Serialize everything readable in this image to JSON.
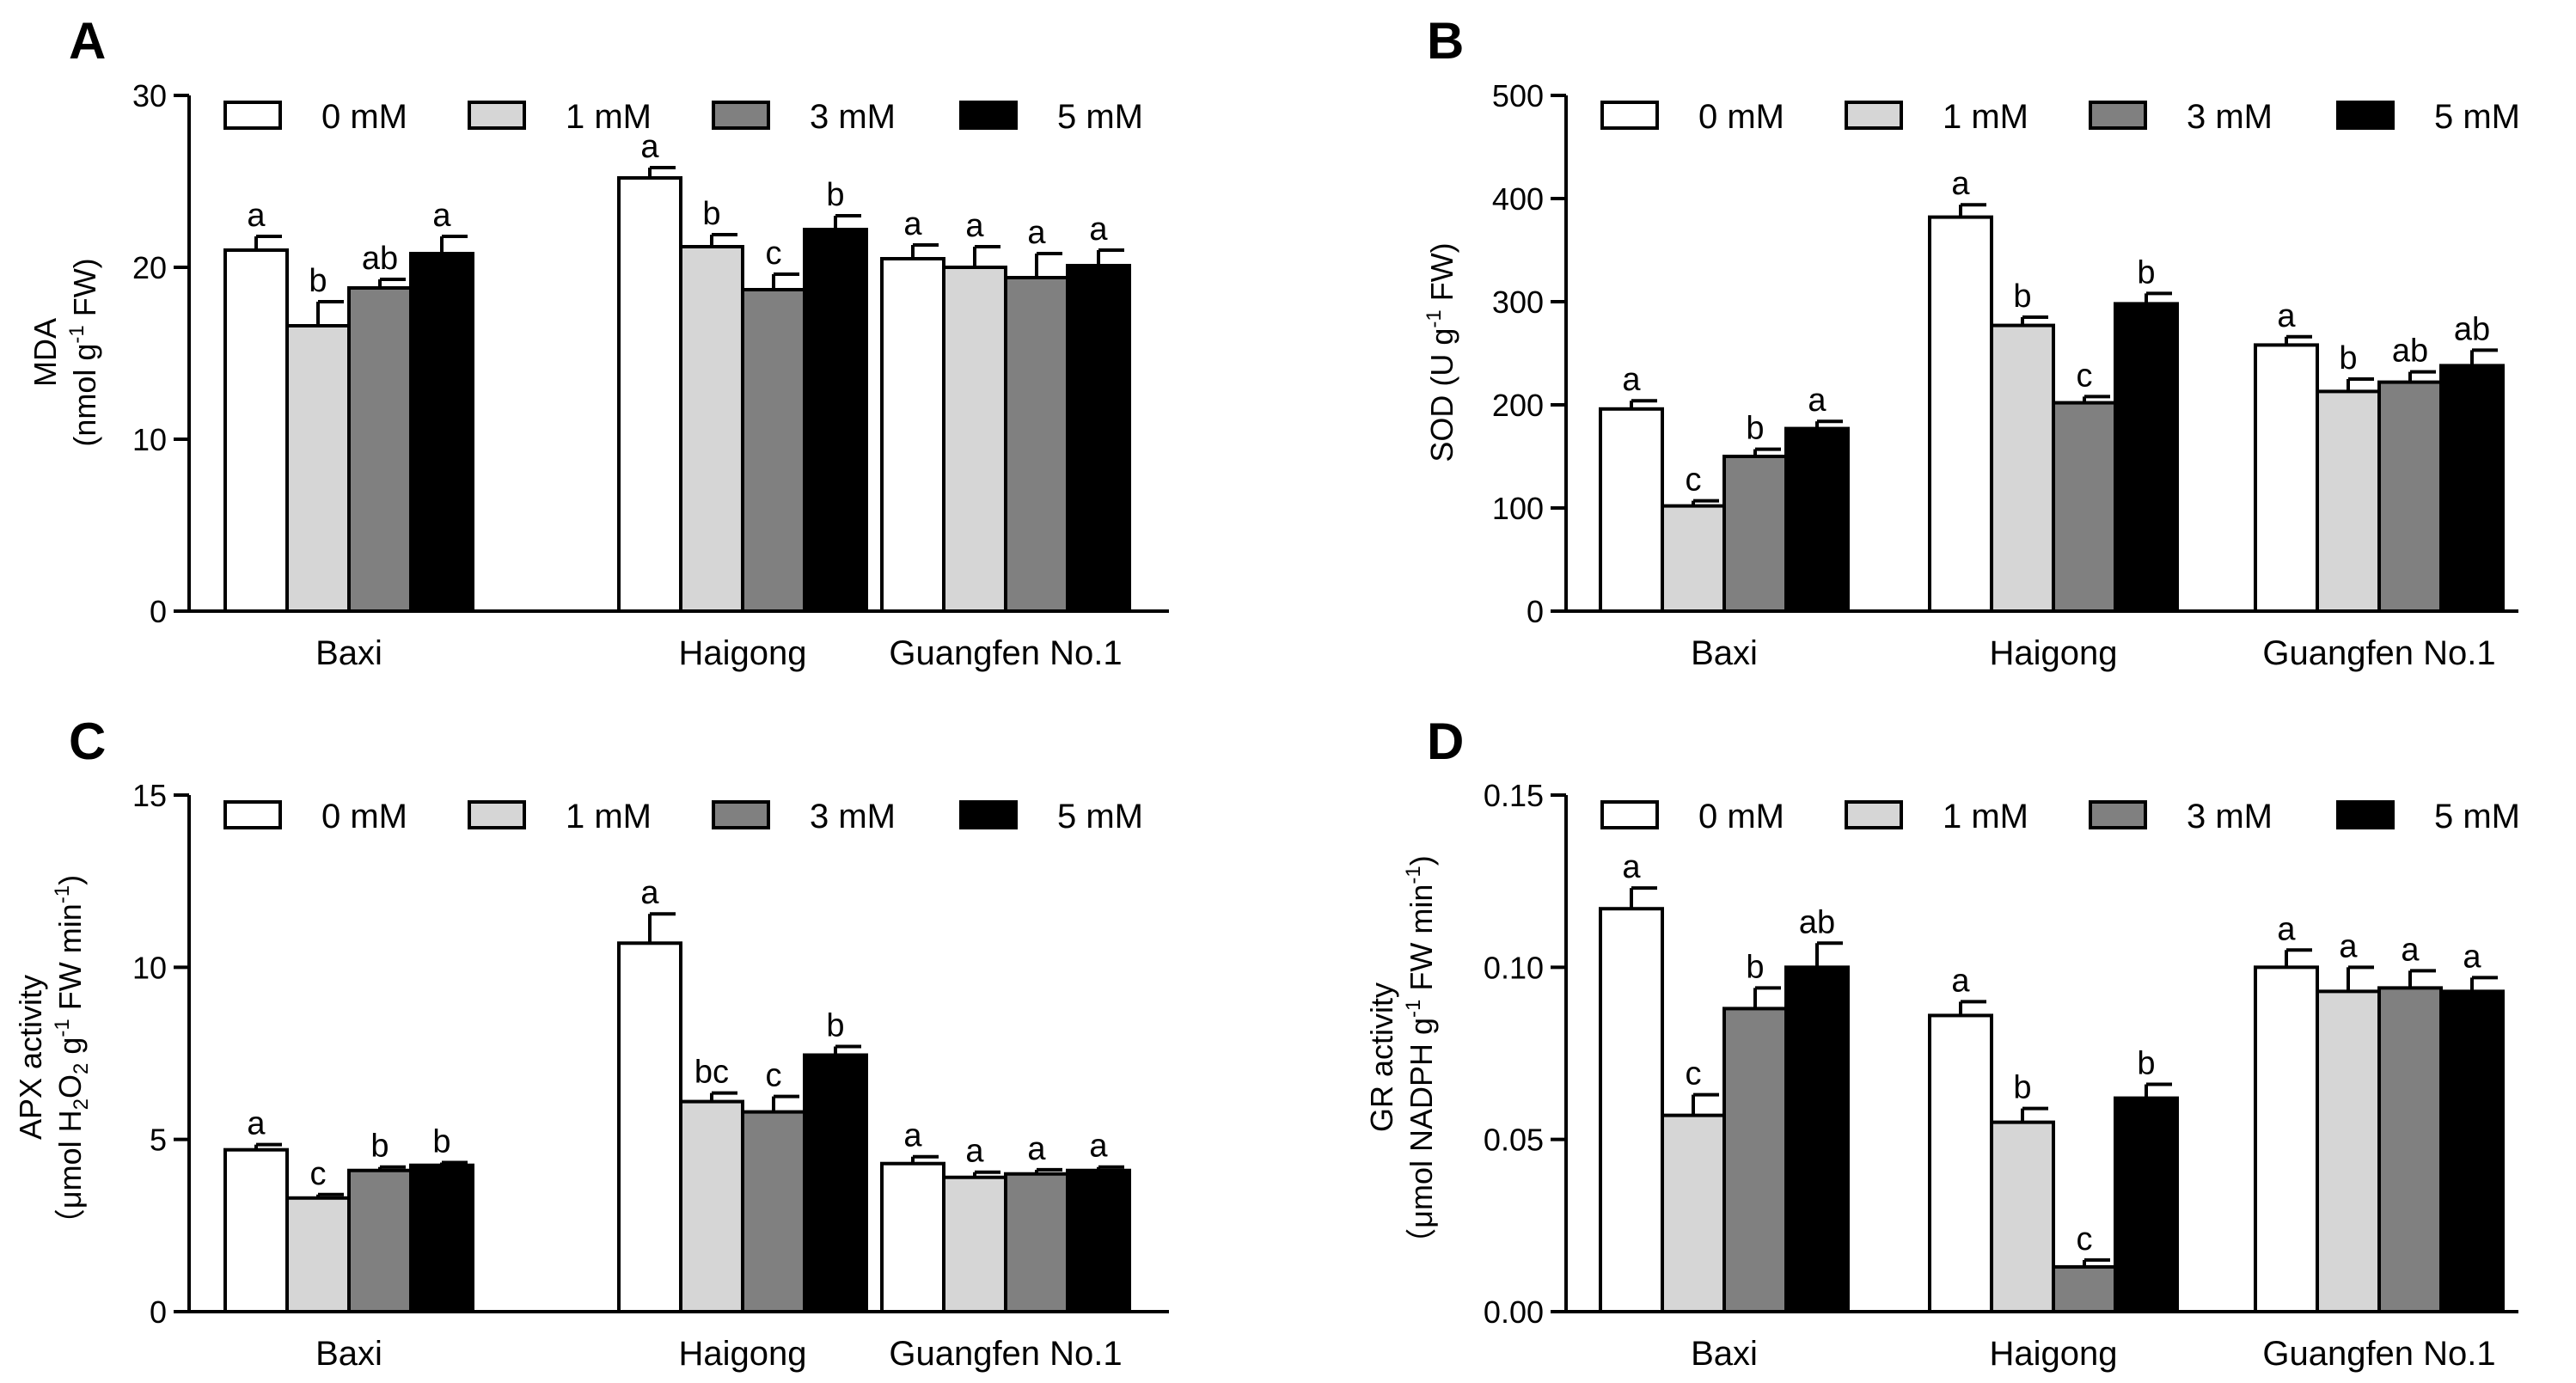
{
  "legend": [
    "0 mM",
    "1 mM",
    "3 mM",
    "5 mM"
  ],
  "colors": {
    "series": [
      "#ffffff",
      "#d6d6d6",
      "#808080",
      "#000000"
    ],
    "stroke": "#000000"
  },
  "chart_data": [
    {
      "panel": "A",
      "type": "bar",
      "title": "",
      "categories": [
        "Baxi",
        "Haigong",
        "Guangfen No.1"
      ],
      "ylabel": "MDA",
      "yunit": "(nmol g-1 FW)",
      "ylabel_parts": [
        "MDA"
      ],
      "yunit_parts": [
        "(nmol g",
        "-1",
        " FW)"
      ],
      "ylim": [
        0,
        30
      ],
      "yticks": [
        0,
        10,
        20,
        30
      ],
      "tick_labels": [
        "0",
        "10",
        "20",
        "30"
      ],
      "series": [
        {
          "name": "0 mM",
          "values": [
            21.0,
            25.2,
            20.5
          ],
          "errors": [
            0.8,
            0.6,
            0.8
          ],
          "letters": [
            "a",
            "a",
            "a"
          ]
        },
        {
          "name": "1 mM",
          "values": [
            16.6,
            21.2,
            20.0
          ],
          "errors": [
            1.4,
            0.7,
            1.2
          ],
          "letters": [
            "b",
            "b",
            "a"
          ]
        },
        {
          "name": "3 mM",
          "values": [
            18.8,
            18.7,
            19.4
          ],
          "errors": [
            0.5,
            0.9,
            1.4
          ],
          "letters": [
            "ab",
            "c",
            "a"
          ]
        },
        {
          "name": "5 mM",
          "values": [
            20.8,
            22.2,
            20.1
          ],
          "errors": [
            1.0,
            0.8,
            0.9
          ],
          "letters": [
            "a",
            "b",
            "a"
          ]
        }
      ]
    },
    {
      "panel": "B",
      "type": "bar",
      "title": "",
      "categories": [
        "Baxi",
        "Haigong",
        "Guangfen No.1"
      ],
      "ylabel": "SOD",
      "yunit": "(U g-1 FW)",
      "ylabel_parts": [
        "SOD (U g",
        "-1",
        " FW)"
      ],
      "yunit_parts": [],
      "ylim": [
        0,
        500
      ],
      "yticks": [
        0,
        100,
        200,
        300,
        400,
        500
      ],
      "tick_labels": [
        "0",
        "100",
        "200",
        "300",
        "400",
        "500"
      ],
      "series": [
        {
          "name": "0 mM",
          "values": [
            196,
            382,
            258
          ],
          "errors": [
            8,
            12,
            8
          ],
          "letters": [
            "a",
            "a",
            "a"
          ]
        },
        {
          "name": "1 mM",
          "values": [
            102,
            277,
            213
          ],
          "errors": [
            5,
            8,
            12
          ],
          "letters": [
            "c",
            "b",
            "b"
          ]
        },
        {
          "name": "3 mM",
          "values": [
            150,
            202,
            222
          ],
          "errors": [
            7,
            6,
            10
          ],
          "letters": [
            "b",
            "c",
            "ab"
          ]
        },
        {
          "name": "5 mM",
          "values": [
            177,
            298,
            238
          ],
          "errors": [
            7,
            10,
            15
          ],
          "letters": [
            "a",
            "b",
            "ab"
          ]
        }
      ]
    },
    {
      "panel": "C",
      "type": "bar",
      "title": "",
      "categories": [
        "Baxi",
        "Haigong",
        "Guangfen No.1"
      ],
      "ylabel": "APX activity",
      "yunit": "(μmol H2O2 g-1 FW min-1)",
      "ylabel_parts": [
        "APX activity"
      ],
      "yunit_parts": [
        "（μmol H",
        "2",
        "O",
        "2",
        " g",
        "-1",
        " FW min",
        "-1",
        ")"
      ],
      "ylim": [
        0,
        15
      ],
      "yticks": [
        0,
        5,
        10,
        15
      ],
      "tick_labels": [
        "0",
        "5",
        "10",
        "15"
      ],
      "series": [
        {
          "name": "0 mM",
          "values": [
            4.7,
            10.7,
            4.3
          ],
          "errors": [
            0.15,
            0.85,
            0.2
          ],
          "letters": [
            "a",
            "a",
            "a"
          ]
        },
        {
          "name": "1 mM",
          "values": [
            3.3,
            6.1,
            3.9
          ],
          "errors": [
            0.1,
            0.25,
            0.15
          ],
          "letters": [
            "c",
            "bc",
            "a"
          ]
        },
        {
          "name": "3 mM",
          "values": [
            4.1,
            5.8,
            4.0
          ],
          "errors": [
            0.1,
            0.45,
            0.12
          ],
          "letters": [
            "b",
            "c",
            "a"
          ]
        },
        {
          "name": "5 mM",
          "values": [
            4.25,
            7.45,
            4.1
          ],
          "errors": [
            0.08,
            0.25,
            0.1
          ],
          "letters": [
            "b",
            "b",
            "a"
          ]
        }
      ]
    },
    {
      "panel": "D",
      "type": "bar",
      "title": "",
      "categories": [
        "Baxi",
        "Haigong",
        "Guangfen No.1"
      ],
      "ylabel": "GR activity",
      "yunit": "(μmol NADPH g-1 FW min-1)",
      "ylabel_parts": [
        "GR activity"
      ],
      "yunit_parts": [
        "（μmol NADPH g",
        "-1",
        " FW min",
        "-1",
        ")"
      ],
      "ylim": [
        0,
        0.15
      ],
      "yticks": [
        0,
        0.05,
        0.1,
        0.15
      ],
      "tick_labels": [
        "0.00",
        "0.05",
        "0.10",
        "0.15"
      ],
      "series": [
        {
          "name": "0 mM",
          "values": [
            0.117,
            0.086,
            0.1
          ],
          "errors": [
            0.006,
            0.004,
            0.005
          ],
          "letters": [
            "a",
            "a",
            "a"
          ]
        },
        {
          "name": "1 mM",
          "values": [
            0.057,
            0.055,
            0.093
          ],
          "errors": [
            0.006,
            0.004,
            0.007
          ],
          "letters": [
            "c",
            "b",
            "a"
          ]
        },
        {
          "name": "3 mM",
          "values": [
            0.088,
            0.013,
            0.094
          ],
          "errors": [
            0.006,
            0.002,
            0.005
          ],
          "letters": [
            "b",
            "c",
            "a"
          ]
        },
        {
          "name": "5 mM",
          "values": [
            0.1,
            0.062,
            0.093
          ],
          "errors": [
            0.007,
            0.004,
            0.004
          ],
          "letters": [
            "ab",
            "b",
            "a"
          ]
        }
      ]
    }
  ]
}
